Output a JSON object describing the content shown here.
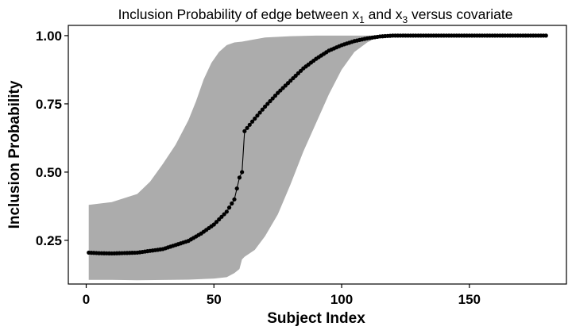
{
  "chart_data": {
    "type": "line",
    "title": {
      "parts": [
        {
          "text": "Inclusion Probability of edge between x",
          "sub": false
        },
        {
          "text": "1",
          "sub": true
        },
        {
          "text": " and x",
          "sub": false
        },
        {
          "text": "3",
          "sub": true
        },
        {
          "text": " versus covariate",
          "sub": false
        }
      ]
    },
    "xlabel": "Subject Index",
    "ylabel": "Inclusion Probability",
    "xlim": [
      -7,
      188
    ],
    "ylim": [
      0.09,
      1.0375
    ],
    "xticks": [
      0,
      50,
      100,
      150
    ],
    "xtick_labels": [
      "0",
      "50",
      "100",
      "150"
    ],
    "yticks": [
      0.25,
      0.5,
      0.75,
      1.0
    ],
    "ytick_labels": [
      "0.25",
      "0.50",
      "0.75",
      "1.00"
    ],
    "grid": false,
    "n_points": 180,
    "series": [
      {
        "markers": "circle",
        "color": "#000000",
        "knots": [
          [
            1,
            0.205
          ],
          [
            5,
            0.203
          ],
          [
            10,
            0.202
          ],
          [
            20,
            0.205
          ],
          [
            30,
            0.218
          ],
          [
            40,
            0.248
          ],
          [
            45,
            0.275
          ],
          [
            50,
            0.308
          ],
          [
            55,
            0.355
          ],
          [
            58,
            0.4
          ],
          [
            60,
            0.48
          ],
          [
            61,
            0.5
          ],
          [
            62,
            0.65
          ],
          [
            65,
            0.685
          ],
          [
            70,
            0.74
          ],
          [
            75,
            0.79
          ],
          [
            80,
            0.835
          ],
          [
            85,
            0.88
          ],
          [
            90,
            0.915
          ],
          [
            95,
            0.945
          ],
          [
            100,
            0.965
          ],
          [
            105,
            0.98
          ],
          [
            110,
            0.99
          ],
          [
            115,
            0.997
          ],
          [
            120,
            1.0
          ],
          [
            180,
            1.0
          ]
        ]
      }
    ],
    "band": {
      "color": "#acacac",
      "upper": [
        [
          1,
          0.38
        ],
        [
          10,
          0.39
        ],
        [
          15,
          0.405
        ],
        [
          20,
          0.42
        ],
        [
          25,
          0.465
        ],
        [
          30,
          0.53
        ],
        [
          35,
          0.6
        ],
        [
          40,
          0.69
        ],
        [
          43,
          0.76
        ],
        [
          46,
          0.84
        ],
        [
          49,
          0.9
        ],
        [
          52,
          0.94
        ],
        [
          55,
          0.965
        ],
        [
          58,
          0.975
        ],
        [
          61,
          0.978
        ],
        [
          65,
          0.985
        ],
        [
          70,
          0.993
        ],
        [
          80,
          0.998
        ],
        [
          90,
          1.0
        ],
        [
          115,
          1.0
        ]
      ],
      "lower": [
        [
          1,
          0.105
        ],
        [
          10,
          0.105
        ],
        [
          20,
          0.104
        ],
        [
          40,
          0.106
        ],
        [
          50,
          0.11
        ],
        [
          55,
          0.115
        ],
        [
          58,
          0.13
        ],
        [
          60,
          0.145
        ],
        [
          61,
          0.18
        ],
        [
          62,
          0.19
        ],
        [
          66,
          0.215
        ],
        [
          70,
          0.265
        ],
        [
          75,
          0.345
        ],
        [
          80,
          0.455
        ],
        [
          85,
          0.575
        ],
        [
          90,
          0.68
        ],
        [
          95,
          0.785
        ],
        [
          100,
          0.875
        ],
        [
          105,
          0.94
        ],
        [
          110,
          0.975
        ],
        [
          115,
          1.0
        ]
      ]
    }
  }
}
